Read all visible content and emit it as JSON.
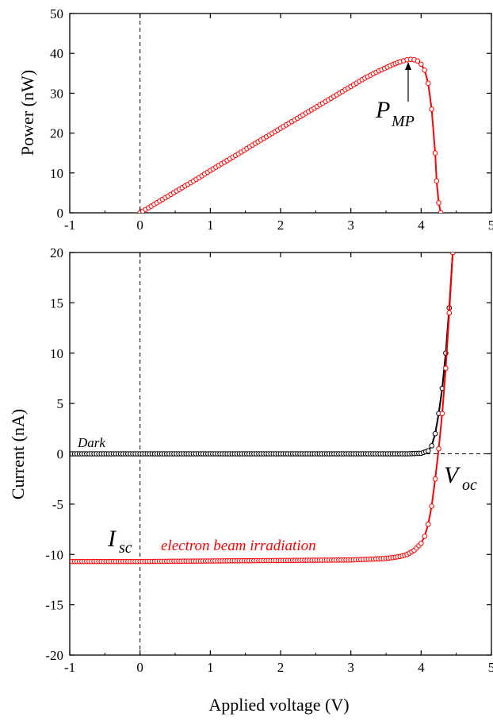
{
  "chart_data": [
    {
      "type": "line",
      "ylabel": "Power (nW)",
      "xlim": [
        -1,
        5
      ],
      "ylim": [
        0,
        50
      ],
      "x_ticks": [
        "-1",
        "0",
        "1",
        "2",
        "3",
        "4",
        "5"
      ],
      "y_ticks": [
        "0",
        "10",
        "20",
        "30",
        "40",
        "50"
      ],
      "grid": false,
      "series": [
        {
          "color": "#ff0000",
          "marker": "open-circle",
          "x": [
            0,
            0.2,
            0.4,
            0.6,
            0.8,
            1.0,
            1.2,
            1.4,
            1.6,
            1.8,
            2.0,
            2.2,
            2.4,
            2.6,
            2.8,
            3.0,
            3.2,
            3.4,
            3.6,
            3.7,
            3.8,
            3.85,
            3.9,
            3.95,
            4.0,
            4.05,
            4.1,
            4.15,
            4.2,
            4.22,
            4.25,
            4.28
          ],
          "y": [
            0,
            2.1,
            4.2,
            6.3,
            8.4,
            10.6,
            12.7,
            14.8,
            17.0,
            19.1,
            21.2,
            23.3,
            25.4,
            27.5,
            29.6,
            31.7,
            33.8,
            35.6,
            37.2,
            37.9,
            38.4,
            38.5,
            38.4,
            38.1,
            37.3,
            35.8,
            32.5,
            26.0,
            15.0,
            8.0,
            2.5,
            0
          ]
        }
      ],
      "annotations": [
        {
          "text": "P",
          "subscript": "MP",
          "x": 3.85,
          "y": 38.5
        }
      ]
    },
    {
      "type": "line",
      "xlabel": "Applied voltage  (V)",
      "ylabel": "Current (nA)",
      "xlim": [
        -1,
        5
      ],
      "ylim": [
        -20,
        20
      ],
      "x_ticks": [
        "-1",
        "0",
        "1",
        "2",
        "3",
        "4",
        "5"
      ],
      "y_ticks": [
        "-20",
        "-15",
        "-10",
        "-5",
        "0",
        "5",
        "10",
        "15",
        "20"
      ],
      "grid": false,
      "series": [
        {
          "name": "Dark",
          "color": "#000000",
          "marker": "open-circle",
          "x": [
            -1,
            0,
            1,
            2,
            3,
            3.8,
            4.0,
            4.1,
            4.15,
            4.2,
            4.25,
            4.3,
            4.35,
            4.4,
            4.45
          ],
          "y": [
            0,
            0,
            0,
            0,
            0,
            0,
            0.05,
            0.3,
            0.8,
            2.0,
            4.0,
            6.5,
            10.0,
            14.5,
            20.0
          ]
        },
        {
          "name": "electron beam irradiation",
          "color": "#ff0000",
          "marker": "open-circle",
          "x": [
            -1,
            0,
            1,
            2,
            3,
            3.5,
            3.7,
            3.8,
            3.9,
            4.0,
            4.05,
            4.1,
            4.15,
            4.2,
            4.25,
            4.3,
            4.35,
            4.4,
            4.45
          ],
          "y": [
            -10.7,
            -10.7,
            -10.65,
            -10.6,
            -10.55,
            -10.4,
            -10.2,
            -10.0,
            -9.6,
            -8.9,
            -8.2,
            -7.0,
            -5.2,
            -2.5,
            0.5,
            4.0,
            8.5,
            14.0,
            20.0
          ]
        }
      ],
      "reference_lines": {
        "x": 0,
        "y": 0,
        "style": "dashed"
      },
      "annotations": [
        {
          "text": "I",
          "subscript": "sc"
        },
        {
          "text": "V",
          "subscript": "oc"
        }
      ]
    }
  ]
}
